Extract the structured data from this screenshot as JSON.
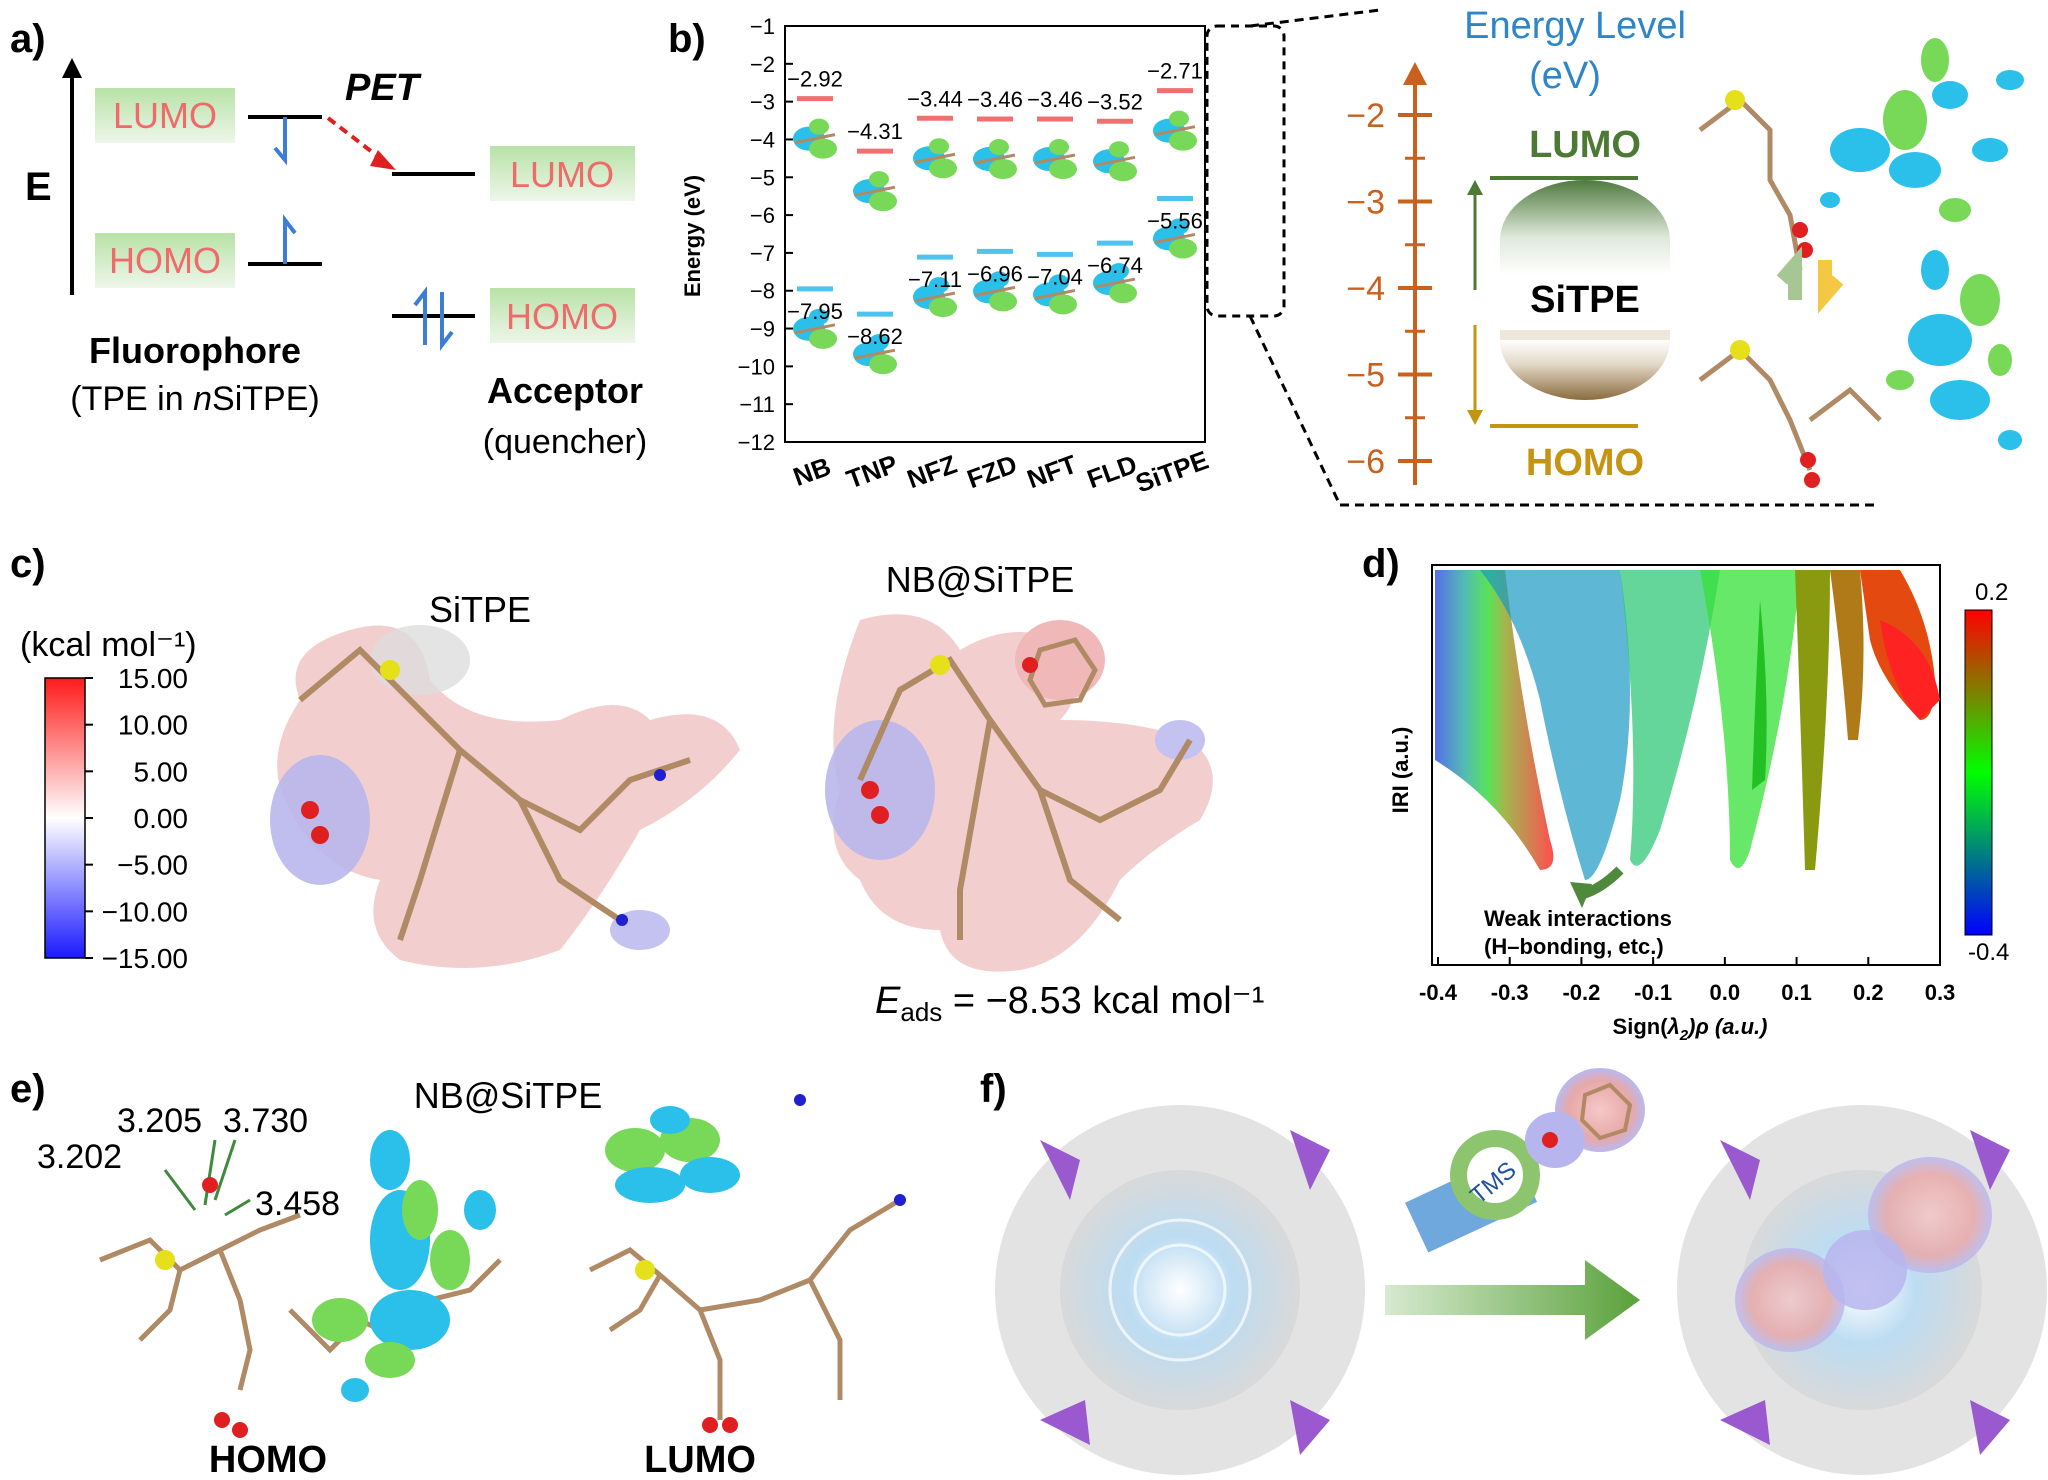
{
  "panels": {
    "a": "a)",
    "b": "b)",
    "c": "c)",
    "d": "d)",
    "e": "e)",
    "f": "f)"
  },
  "panel_a": {
    "axis_label": "E",
    "pet": "PET",
    "fluor_lumo": "LUMO",
    "fluor_homo": "HOMO",
    "acc_lumo": "LUMO",
    "acc_homo": "HOMO",
    "fluor_title": "Fluorophore",
    "fluor_sub_pre": "(TPE in ",
    "fluor_sub_italic": "n",
    "fluor_sub_post": "SiTPE)",
    "acc_title": "Acceptor",
    "acc_sub": "(quencher)"
  },
  "panel_b": {
    "ylabel": "Energy (eV)",
    "inset_title_1": "Energy Level",
    "inset_title_2": "(eV)",
    "inset_lumo": "LUMO",
    "inset_homo": "HOMO",
    "inset_center": "SiTPE",
    "inset_ticks": [
      "−2",
      "−3",
      "−4",
      "−5",
      "−6"
    ]
  },
  "chart_data": {
    "type": "scatter",
    "title": "",
    "ylabel": "Energy (eV)",
    "ylim": [
      -12,
      -1
    ],
    "yticks": [
      "−1",
      "−2",
      "−3",
      "−4",
      "−5",
      "−6",
      "−7",
      "−8",
      "−9",
      "−10",
      "−11",
      "−12"
    ],
    "categories": [
      "NB",
      "TNP",
      "NFZ",
      "FZD",
      "NFT",
      "FLD",
      "SiTPE"
    ],
    "series": [
      {
        "name": "LUMO",
        "color": "#f07070",
        "values": [
          -2.92,
          -4.31,
          -3.44,
          -3.46,
          -3.46,
          -3.52,
          -2.71
        ],
        "labels": [
          "−2.92",
          "−4.31",
          "−3.44",
          "−3.46",
          "−3.46",
          "−3.52",
          "−2.71"
        ]
      },
      {
        "name": "HOMO",
        "color": "#4fc3f0",
        "values": [
          -7.95,
          -8.62,
          -7.11,
          -6.96,
          -7.04,
          -6.74,
          -5.56
        ],
        "labels": [
          "−7.95",
          "−8.62",
          "−7.11",
          "−6.96",
          "−7.04",
          "−6.74",
          "−5.56"
        ]
      }
    ]
  },
  "panel_c": {
    "unit_label": "(kcal mol⁻¹)",
    "colorbar_ticks": [
      "15.00",
      "10.00",
      "5.00",
      "0.00",
      "−5.00",
      "−10.00",
      "−15.00"
    ],
    "left_title": "SiTPE",
    "right_title": "NB@SiTPE",
    "eads_e": "E",
    "eads_sub": "ads",
    "eads_value": " = −8.53 kcal mol⁻¹"
  },
  "panel_d": {
    "ylabel": "IRI (a.u.)",
    "xlabel_pre": "Sign(",
    "xlabel_lambda": "λ",
    "xlabel_sub": "2",
    "xlabel_post": ")ρ (a.u.)",
    "xticks": [
      "-0.4",
      "-0.3",
      "-0.2",
      "-0.1",
      "0.0",
      "0.1",
      "0.2",
      "0.3"
    ],
    "colorbar_max": "0.2",
    "colorbar_min": "-0.4",
    "annotation_1": "Weak interactions",
    "annotation_2": "(H–bonding, etc.)"
  },
  "panel_e": {
    "title": "NB@SiTPE",
    "homo": "HOMO",
    "lumo": "LUMO",
    "distances": [
      "3.205",
      "3.730",
      "3.202",
      "3.458"
    ]
  },
  "panel_f": {
    "tms": "TMS"
  },
  "colors": {
    "lumo_red": "#f07070",
    "homo_blue": "#4fc3f0",
    "energy_blue": "#2e86c8",
    "axis_orange": "#c8611e",
    "lumo_green": "#4c7a34",
    "homo_gold": "#c59512"
  }
}
